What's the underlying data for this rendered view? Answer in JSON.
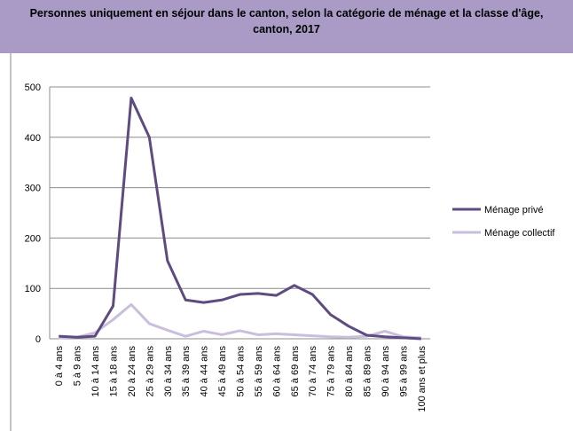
{
  "chart_data": {
    "type": "line",
    "title": "Personnes uniquement en séjour dans le canton, selon la catégorie de ménage et la classe d'âge, canton, 2017",
    "categories": [
      "0 à 4 ans",
      "5 à 9 ans",
      "10 à 14 ans",
      "15 à 18 ans",
      "20 à 24 ans",
      "25 à 29 ans",
      "30 à 34 ans",
      "35 à 39 ans",
      "40 à 44 ans",
      "45 à 49 ans",
      "50 à 54 ans",
      "55 à 59 ans",
      "60 à 64 ans",
      "65 à 69 ans",
      "70 à 74 ans",
      "75 à 79 ans",
      "80 à 84 ans",
      "85 à 89 ans",
      "90 à 94 ans",
      "95 à 99 ans",
      "100 ans et plus"
    ],
    "series": [
      {
        "name": "Ménage privé",
        "color": "#5e4b80",
        "values": [
          5,
          3,
          5,
          65,
          478,
          400,
          155,
          77,
          72,
          77,
          88,
          90,
          86,
          106,
          88,
          48,
          25,
          7,
          4,
          2,
          0
        ]
      },
      {
        "name": "Ménage collectif",
        "color": "#c9bfdd",
        "values": [
          2,
          3,
          12,
          38,
          68,
          30,
          17,
          5,
          15,
          8,
          16,
          8,
          10,
          8,
          6,
          4,
          3,
          5,
          15,
          4,
          2
        ]
      }
    ],
    "ylim": [
      0,
      500
    ],
    "yticks": [
      0,
      100,
      200,
      300,
      400,
      500
    ],
    "grid": true,
    "legend": "right"
  }
}
